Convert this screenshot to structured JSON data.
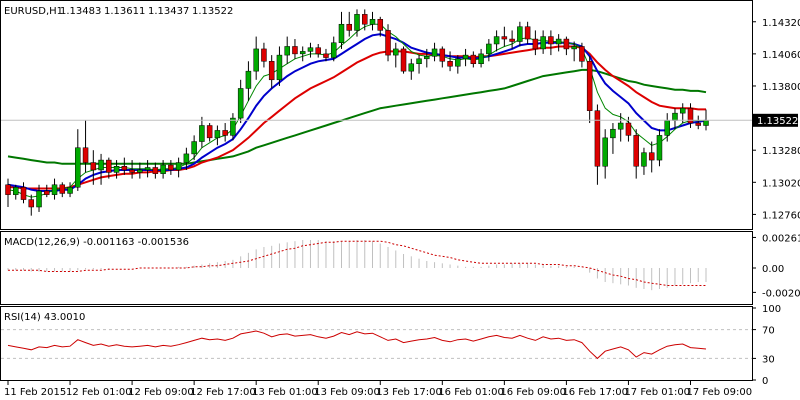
{
  "header": {
    "symbol": "EURUSD,H1",
    "open": "1.13483",
    "high": "1.13611",
    "low": "1.13437",
    "close": "1.13522"
  },
  "last_price_label": "1.13522",
  "colors": {
    "bull": "#00aa00",
    "bear": "#dd0000",
    "ma_fast": "#008800",
    "ma_mid": "#0000cc",
    "ma_red": "#dd0000",
    "ma_slow": "#007700",
    "macd_hist": "#c0c0c0",
    "macd_signal": "#cc0000",
    "rsi_line": "#cc0000",
    "axis": "#000000",
    "gridline": "#c0c0c0"
  },
  "chart_data": [
    {
      "type": "candlestick",
      "title": "EURUSD,H1",
      "ylim": [
        1.1265,
        1.1448
      ],
      "y_ticks": [
        "1.14320",
        "1.14060",
        "1.13800",
        "1.13280",
        "1.13020",
        "1.12760"
      ],
      "x_tick_labels": [
        "11 Feb 2015",
        "12 Feb 01:00",
        "12 Feb 09:00",
        "12 Feb 17:00",
        "13 Feb 01:00",
        "13 Feb 09:00",
        "13 Feb 17:00",
        "16 Feb 01:00",
        "16 Feb 09:00",
        "16 Feb 17:00",
        "17 Feb 01:00",
        "17 Feb 09:00"
      ],
      "candles": [
        [
          1.13,
          1.1305,
          1.1282,
          1.1292
        ],
        [
          1.1292,
          1.13,
          1.1288,
          1.1298
        ],
        [
          1.1298,
          1.1302,
          1.1285,
          1.1288
        ],
        [
          1.1288,
          1.1292,
          1.1275,
          1.1282
        ],
        [
          1.1282,
          1.13,
          1.1278,
          1.1295
        ],
        [
          1.1295,
          1.13,
          1.129,
          1.1292
        ],
        [
          1.1292,
          1.1305,
          1.1288,
          1.13
        ],
        [
          1.13,
          1.1302,
          1.129,
          1.1293
        ],
        [
          1.1293,
          1.1302,
          1.129,
          1.1298
        ],
        [
          1.1298,
          1.1345,
          1.1295,
          1.133
        ],
        [
          1.133,
          1.1352,
          1.131,
          1.1318
        ],
        [
          1.1318,
          1.1328,
          1.13,
          1.1312
        ],
        [
          1.1312,
          1.1325,
          1.13,
          1.132
        ],
        [
          1.132,
          1.1322,
          1.1305,
          1.131
        ],
        [
          1.131,
          1.132,
          1.1305,
          1.1315
        ],
        [
          1.1315,
          1.1322,
          1.1308,
          1.1312
        ],
        [
          1.1312,
          1.132,
          1.1305,
          1.131
        ],
        [
          1.131,
          1.1318,
          1.1305,
          1.1312
        ],
        [
          1.1312,
          1.132,
          1.1306,
          1.1314
        ],
        [
          1.1314,
          1.1318,
          1.1305,
          1.1309
        ],
        [
          1.1309,
          1.132,
          1.1305,
          1.1316
        ],
        [
          1.1316,
          1.132,
          1.1308,
          1.1312
        ],
        [
          1.1312,
          1.1322,
          1.1306,
          1.1318
        ],
        [
          1.1318,
          1.133,
          1.1312,
          1.1325
        ],
        [
          1.1325,
          1.134,
          1.132,
          1.1335
        ],
        [
          1.1335,
          1.1355,
          1.133,
          1.1348
        ],
        [
          1.1348,
          1.135,
          1.1335,
          1.1338
        ],
        [
          1.1338,
          1.1348,
          1.1332,
          1.1344
        ],
        [
          1.1344,
          1.135,
          1.1335,
          1.134
        ],
        [
          1.134,
          1.1358,
          1.1336,
          1.1354
        ],
        [
          1.1354,
          1.1385,
          1.135,
          1.1378
        ],
        [
          1.1378,
          1.14,
          1.1368,
          1.1392
        ],
        [
          1.1392,
          1.142,
          1.1385,
          1.141
        ],
        [
          1.141,
          1.1415,
          1.1395,
          1.14
        ],
        [
          1.14,
          1.1405,
          1.1378,
          1.1385
        ],
        [
          1.1385,
          1.1412,
          1.138,
          1.1405
        ],
        [
          1.1405,
          1.142,
          1.1398,
          1.1412
        ],
        [
          1.1412,
          1.1418,
          1.1402,
          1.1406
        ],
        [
          1.1406,
          1.1412,
          1.14,
          1.1408
        ],
        [
          1.1408,
          1.1415,
          1.1403,
          1.1411
        ],
        [
          1.1411,
          1.1414,
          1.1403,
          1.1406
        ],
        [
          1.1406,
          1.141,
          1.14,
          1.1403
        ],
        [
          1.1403,
          1.142,
          1.14,
          1.1415
        ],
        [
          1.1415,
          1.144,
          1.141,
          1.143
        ],
        [
          1.143,
          1.144,
          1.142,
          1.1425
        ],
        [
          1.1425,
          1.1442,
          1.142,
          1.1438
        ],
        [
          1.1438,
          1.1442,
          1.1425,
          1.143
        ],
        [
          1.143,
          1.144,
          1.1425,
          1.1434
        ],
        [
          1.1434,
          1.1436,
          1.142,
          1.1425
        ],
        [
          1.1425,
          1.143,
          1.14,
          1.1405
        ],
        [
          1.1405,
          1.1415,
          1.1395,
          1.141
        ],
        [
          1.141,
          1.1412,
          1.139,
          1.1392
        ],
        [
          1.1392,
          1.1402,
          1.1385,
          1.1398
        ],
        [
          1.1398,
          1.1405,
          1.139,
          1.1402
        ],
        [
          1.1402,
          1.141,
          1.1395,
          1.1404
        ],
        [
          1.1404,
          1.1415,
          1.14,
          1.141
        ],
        [
          1.141,
          1.1412,
          1.1395,
          1.14
        ],
        [
          1.14,
          1.1408,
          1.1392,
          1.1396
        ],
        [
          1.1396,
          1.1405,
          1.139,
          1.1402
        ],
        [
          1.1402,
          1.141,
          1.1396,
          1.1405
        ],
        [
          1.1405,
          1.1408,
          1.1395,
          1.1398
        ],
        [
          1.1398,
          1.141,
          1.1395,
          1.1406
        ],
        [
          1.1406,
          1.1418,
          1.14,
          1.1414
        ],
        [
          1.1414,
          1.1425,
          1.1408,
          1.142
        ],
        [
          1.142,
          1.1428,
          1.1412,
          1.1418
        ],
        [
          1.1418,
          1.1425,
          1.141,
          1.1416
        ],
        [
          1.1416,
          1.1432,
          1.1412,
          1.1428
        ],
        [
          1.1428,
          1.1432,
          1.1414,
          1.1418
        ],
        [
          1.1418,
          1.1425,
          1.1405,
          1.141
        ],
        [
          1.141,
          1.1425,
          1.1406,
          1.142
        ],
        [
          1.142,
          1.1425,
          1.1405,
          1.1414
        ],
        [
          1.1414,
          1.1422,
          1.1408,
          1.1418
        ],
        [
          1.1418,
          1.142,
          1.1405,
          1.141
        ],
        [
          1.141,
          1.1416,
          1.14,
          1.1412
        ],
        [
          1.1412,
          1.1415,
          1.1395,
          1.14
        ],
        [
          1.14,
          1.1404,
          1.135,
          1.136
        ],
        [
          1.136,
          1.1365,
          1.13,
          1.1315
        ],
        [
          1.1315,
          1.1345,
          1.1305,
          1.1338
        ],
        [
          1.1338,
          1.135,
          1.1325,
          1.1345
        ],
        [
          1.1345,
          1.1358,
          1.1335,
          1.135
        ],
        [
          1.135,
          1.1355,
          1.1335,
          1.134
        ],
        [
          1.134,
          1.1345,
          1.1305,
          1.1315
        ],
        [
          1.1315,
          1.133,
          1.1308,
          1.1326
        ],
        [
          1.1326,
          1.1335,
          1.131,
          1.132
        ],
        [
          1.132,
          1.1345,
          1.1315,
          1.134
        ],
        [
          1.134,
          1.1358,
          1.1335,
          1.1352
        ],
        [
          1.1352,
          1.1362,
          1.1345,
          1.1358
        ],
        [
          1.1358,
          1.1366,
          1.135,
          1.1362
        ],
        [
          1.1362,
          1.1366,
          1.1346,
          1.135
        ],
        [
          1.135,
          1.1356,
          1.1345,
          1.1348
        ],
        [
          1.1348,
          1.1361,
          1.1344,
          1.1352
        ]
      ],
      "ma_fast": [
        1.1296,
        1.1295,
        1.1292,
        1.129,
        1.1291,
        1.1293,
        1.1296,
        1.1297,
        1.1298,
        1.1305,
        1.131,
        1.1312,
        1.1314,
        1.1314,
        1.1314,
        1.1314,
        1.1313,
        1.1313,
        1.1313,
        1.1312,
        1.1313,
        1.1313,
        1.1314,
        1.1317,
        1.1322,
        1.133,
        1.1334,
        1.1338,
        1.134,
        1.1345,
        1.1356,
        1.1368,
        1.138,
        1.1388,
        1.139,
        1.1394,
        1.1398,
        1.1402,
        1.1404,
        1.1406,
        1.1406,
        1.1405,
        1.1407,
        1.1413,
        1.1418,
        1.1424,
        1.1428,
        1.143,
        1.143,
        1.1424,
        1.142,
        1.1414,
        1.1408,
        1.1405,
        1.1404,
        1.1405,
        1.1404,
        1.1402,
        1.1401,
        1.1402,
        1.1401,
        1.1402,
        1.1405,
        1.1409,
        1.1412,
        1.1414,
        1.1418,
        1.1419,
        1.1417,
        1.1417,
        1.1416,
        1.1416,
        1.1415,
        1.1414,
        1.141,
        1.1395,
        1.1375,
        1.1362,
        1.1357,
        1.1355,
        1.1351,
        1.1342,
        1.1337,
        1.1332,
        1.1334,
        1.1339,
        1.1345,
        1.135,
        1.1352,
        1.1352,
        1.1352
      ],
      "ma_mid": [
        1.13,
        1.1299,
        1.1298,
        1.1296,
        1.1295,
        1.1295,
        1.1295,
        1.1296,
        1.1296,
        1.13,
        1.1305,
        1.1308,
        1.131,
        1.1311,
        1.1312,
        1.1312,
        1.1312,
        1.1312,
        1.1312,
        1.1312,
        1.1312,
        1.1312,
        1.1313,
        1.1314,
        1.1317,
        1.1322,
        1.1326,
        1.133,
        1.1333,
        1.1337,
        1.1345,
        1.1354,
        1.1364,
        1.1372,
        1.1378,
        1.1383,
        1.1388,
        1.1392,
        1.1395,
        1.1398,
        1.14,
        1.1401,
        1.1402,
        1.1406,
        1.141,
        1.1414,
        1.1418,
        1.1421,
        1.1422,
        1.142,
        1.1418,
        1.1415,
        1.1411,
        1.1409,
        1.1407,
        1.1406,
        1.1405,
        1.1404,
        1.1403,
        1.1403,
        1.1402,
        1.1403,
        1.1404,
        1.1406,
        1.1408,
        1.141,
        1.1413,
        1.1414,
        1.1414,
        1.1415,
        1.1415,
        1.1415,
        1.1415,
        1.1414,
        1.1412,
        1.1404,
        1.1392,
        1.1382,
        1.1376,
        1.1371,
        1.1366,
        1.1358,
        1.1352,
        1.1346,
        1.1344,
        1.1344,
        1.1346,
        1.1348,
        1.135,
        1.1351,
        1.1352
      ],
      "ma_red": [
        1.1298,
        1.1298,
        1.1297,
        1.1297,
        1.1297,
        1.1297,
        1.1297,
        1.1297,
        1.1298,
        1.13,
        1.1302,
        1.1304,
        1.1306,
        1.1307,
        1.1308,
        1.1309,
        1.1309,
        1.131,
        1.131,
        1.1311,
        1.1311,
        1.1312,
        1.1312,
        1.1313,
        1.1315,
        1.1318,
        1.132,
        1.1322,
        1.1325,
        1.1328,
        1.1333,
        1.1338,
        1.1344,
        1.135,
        1.1355,
        1.136,
        1.1365,
        1.137,
        1.1374,
        1.1378,
        1.1381,
        1.1384,
        1.1387,
        1.1391,
        1.1395,
        1.1399,
        1.1402,
        1.1405,
        1.1407,
        1.1408,
        1.1408,
        1.1408,
        1.1407,
        1.1406,
        1.1406,
        1.1405,
        1.1405,
        1.1404,
        1.1404,
        1.1404,
        1.1403,
        1.1404,
        1.1404,
        1.1405,
        1.1406,
        1.1407,
        1.1408,
        1.1409,
        1.141,
        1.1411,
        1.1411,
        1.1412,
        1.1412,
        1.1412,
        1.1411,
        1.1406,
        1.1399,
        1.1393,
        1.1388,
        1.1384,
        1.138,
        1.1375,
        1.1371,
        1.1367,
        1.1364,
        1.1363,
        1.1362,
        1.1362,
        1.1362,
        1.1361,
        1.1361
      ],
      "ma_slow": [
        1.1323,
        1.1322,
        1.1321,
        1.132,
        1.1319,
        1.1318,
        1.1318,
        1.1317,
        1.1317,
        1.1317,
        1.1317,
        1.1317,
        1.1317,
        1.1317,
        1.1317,
        1.1317,
        1.1317,
        1.1317,
        1.1317,
        1.1317,
        1.1317,
        1.1317,
        1.1317,
        1.1317,
        1.1318,
        1.1319,
        1.132,
        1.1321,
        1.1322,
        1.1323,
        1.1325,
        1.1327,
        1.133,
        1.1332,
        1.1334,
        1.1336,
        1.1338,
        1.134,
        1.1342,
        1.1344,
        1.1346,
        1.1348,
        1.135,
        1.1352,
        1.1354,
        1.1356,
        1.1358,
        1.136,
        1.1362,
        1.1363,
        1.1364,
        1.1365,
        1.1366,
        1.1367,
        1.1368,
        1.1369,
        1.137,
        1.1371,
        1.1372,
        1.1373,
        1.1374,
        1.1375,
        1.1376,
        1.1377,
        1.1378,
        1.138,
        1.1382,
        1.1384,
        1.1386,
        1.1388,
        1.1389,
        1.139,
        1.1391,
        1.1392,
        1.1393,
        1.1393,
        1.1392,
        1.139,
        1.1388,
        1.1386,
        1.1384,
        1.1383,
        1.1381,
        1.138,
        1.1379,
        1.1378,
        1.1377,
        1.1377,
        1.1376,
        1.1376,
        1.1375
      ]
    },
    {
      "type": "bar",
      "title": "MACD(12,26,9) -0.001163 -0.001536",
      "ylim": [
        -0.003,
        0.003
      ],
      "y_ticks": [
        "0.002619",
        "0.00",
        "-0.00209"
      ],
      "histogram": [
        -0.0002,
        -0.0002,
        -0.0002,
        -0.0003,
        -0.0003,
        -0.0003,
        -0.0003,
        -0.0003,
        -0.0003,
        -0.0002,
        -0.0001,
        -0.0001,
        -0.0001,
        -0.0001,
        0.0,
        0.0,
        0.0,
        0.0,
        0.0,
        0.0,
        0.0,
        0.0,
        0.0001,
        0.0001,
        0.0002,
        0.0003,
        0.0004,
        0.0005,
        0.0006,
        0.0007,
        0.001,
        0.0013,
        0.0016,
        0.0018,
        0.0019,
        0.0021,
        0.0022,
        0.0023,
        0.0024,
        0.0024,
        0.0024,
        0.0023,
        0.0023,
        0.0023,
        0.0023,
        0.0024,
        0.0024,
        0.0023,
        0.0021,
        0.0018,
        0.0015,
        0.0012,
        0.001,
        0.0008,
        0.0006,
        0.0005,
        0.0004,
        0.0003,
        0.0002,
        0.0001,
        0.0001,
        0.0001,
        0.0002,
        0.0003,
        0.0003,
        0.0004,
        0.0004,
        0.0004,
        0.0003,
        0.0003,
        0.0002,
        0.0002,
        0.0001,
        0.0001,
        0.0,
        -0.0004,
        -0.0009,
        -0.0012,
        -0.0013,
        -0.0014,
        -0.0015,
        -0.0017,
        -0.0018,
        -0.0019,
        -0.0018,
        -0.0017,
        -0.0015,
        -0.0014,
        -0.0013,
        -0.0012,
        -0.0012
      ],
      "signal": [
        -0.0002,
        -0.0002,
        -0.0002,
        -0.0002,
        -0.0002,
        -0.0003,
        -0.0003,
        -0.0003,
        -0.0003,
        -0.0003,
        -0.0002,
        -0.0002,
        -0.0002,
        -0.0001,
        -0.0001,
        -0.0001,
        -0.0001,
        0.0,
        0.0,
        0.0,
        0.0,
        0.0,
        0.0,
        0.0,
        0.0001,
        0.0001,
        0.0002,
        0.0002,
        0.0003,
        0.0004,
        0.0005,
        0.0006,
        0.0008,
        0.001,
        0.0012,
        0.0014,
        0.0016,
        0.0017,
        0.0019,
        0.002,
        0.0021,
        0.0022,
        0.0022,
        0.0023,
        0.0023,
        0.0023,
        0.0023,
        0.0023,
        0.0023,
        0.0022,
        0.002,
        0.0019,
        0.0017,
        0.0015,
        0.0013,
        0.0011,
        0.001,
        0.0009,
        0.0007,
        0.0006,
        0.0005,
        0.0004,
        0.0004,
        0.0004,
        0.0004,
        0.0004,
        0.0004,
        0.0004,
        0.0004,
        0.0003,
        0.0003,
        0.0003,
        0.0002,
        0.0002,
        0.0001,
        0.0,
        -0.0002,
        -0.0004,
        -0.0006,
        -0.0007,
        -0.0009,
        -0.001,
        -0.0012,
        -0.0013,
        -0.0014,
        -0.0015,
        -0.0015,
        -0.0015,
        -0.0015,
        -0.0015,
        -0.0015
      ]
    },
    {
      "type": "line",
      "title": "RSI(14) 43.0010",
      "ylim": [
        0,
        100
      ],
      "y_ticks": [
        "100",
        "70",
        "30",
        "0"
      ],
      "levels": [
        70,
        30
      ],
      "values": [
        48,
        46,
        44,
        42,
        46,
        45,
        48,
        46,
        47,
        56,
        52,
        48,
        50,
        47,
        49,
        47,
        46,
        47,
        48,
        46,
        48,
        47,
        49,
        52,
        55,
        58,
        56,
        57,
        55,
        58,
        64,
        66,
        68,
        65,
        60,
        63,
        64,
        61,
        62,
        63,
        60,
        58,
        61,
        66,
        63,
        67,
        64,
        65,
        60,
        55,
        57,
        52,
        54,
        56,
        57,
        59,
        55,
        53,
        56,
        57,
        54,
        57,
        60,
        62,
        59,
        58,
        62,
        58,
        55,
        60,
        57,
        58,
        55,
        56,
        52,
        40,
        30,
        40,
        43,
        46,
        42,
        32,
        38,
        36,
        42,
        47,
        49,
        50,
        45,
        44,
        43
      ]
    }
  ]
}
